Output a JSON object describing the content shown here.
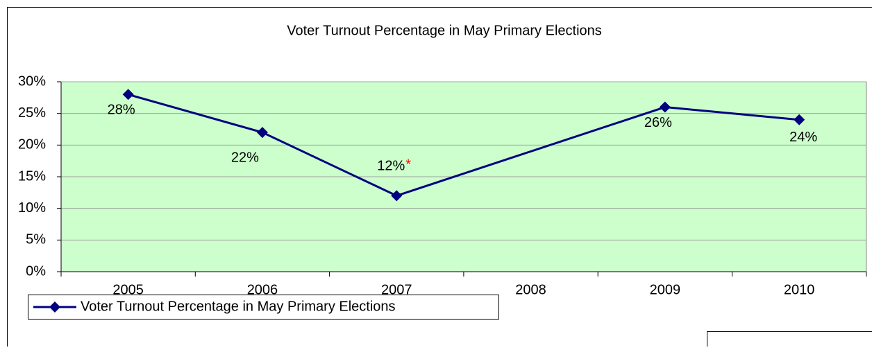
{
  "chart_data": {
    "type": "line",
    "title": "Voter Turnout Percentage in May Primary Elections",
    "categories": [
      "2005",
      "2006",
      "2007",
      "2008",
      "2009",
      "2010"
    ],
    "series": [
      {
        "name": "Voter Turnout Percentage in May Primary Elections",
        "color": "#000080",
        "values": [
          28,
          22,
          12,
          null,
          26,
          24
        ],
        "value_labels": [
          "28%",
          "22%",
          "12%",
          null,
          "26%",
          "24%"
        ]
      }
    ],
    "annotations": [
      {
        "category": "2007",
        "text": "*",
        "color": "#ff0000"
      }
    ],
    "connect_gaps": true,
    "ylim": [
      0,
      30
    ],
    "yticks": [
      {
        "value": 0,
        "label": "0%"
      },
      {
        "value": 5,
        "label": "5%"
      },
      {
        "value": 10,
        "label": "10%"
      },
      {
        "value": 15,
        "label": "15%"
      },
      {
        "value": 20,
        "label": "20%"
      },
      {
        "value": 25,
        "label": "25%"
      },
      {
        "value": 30,
        "label": "30%"
      }
    ],
    "grid": true,
    "plot_background": "#ccffcc",
    "legend": "bottom-left"
  }
}
